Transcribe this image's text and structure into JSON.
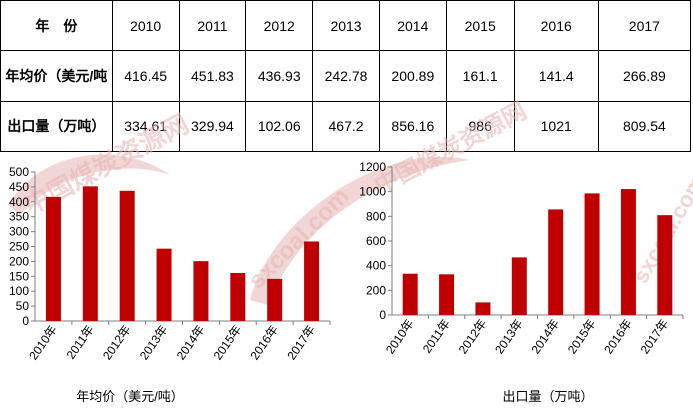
{
  "table": {
    "header_label": "年　份",
    "years": [
      "2010",
      "2011",
      "2012",
      "2013",
      "2014",
      "2015",
      "2016",
      "2017"
    ],
    "rows": [
      {
        "label": "年均价（美元/吨",
        "values": [
          "416.45",
          "451.83",
          "436.93",
          "242.78",
          "200.89",
          "161.1",
          "141.4",
          "266.89"
        ]
      },
      {
        "label": "出口量（万吨）",
        "values": [
          "334.61",
          "329.94",
          "102.06",
          "467.2",
          "856.16",
          "986",
          "1021",
          "809.54"
        ]
      }
    ]
  },
  "watermark": {
    "text1": "sxcoal.com",
    "text2": "中国煤炭资源网"
  },
  "colors": {
    "bar": "#c00000",
    "axis": "#7f7f7f",
    "grid": "#d9d9d9"
  },
  "chart_data": [
    {
      "type": "bar",
      "categories": [
        "2010年",
        "2011年",
        "2012年",
        "2013年",
        "2014年",
        "2015年",
        "2016年",
        "2017年"
      ],
      "values": [
        416.45,
        451.83,
        436.93,
        242.78,
        200.89,
        161.1,
        141.4,
        266.89
      ],
      "title": "",
      "xlabel": "年均价（美元/吨）",
      "ylabel": "",
      "ylim": [
        0,
        500
      ],
      "yticks": [
        0,
        50,
        100,
        150,
        200,
        250,
        300,
        350,
        400,
        450,
        500
      ],
      "grid": false
    },
    {
      "type": "bar",
      "categories": [
        "2010年",
        "2011年",
        "2012年",
        "2013年",
        "2014年",
        "2015年",
        "2016年",
        "2017年"
      ],
      "values": [
        334.61,
        329.94,
        102.06,
        467.2,
        856.16,
        986,
        1021,
        809.54
      ],
      "title": "",
      "xlabel": "出口量（万吨）",
      "ylabel": "",
      "ylim": [
        0,
        1200
      ],
      "yticks": [
        0,
        200,
        400,
        600,
        800,
        1000,
        1200
      ],
      "grid": false
    }
  ]
}
